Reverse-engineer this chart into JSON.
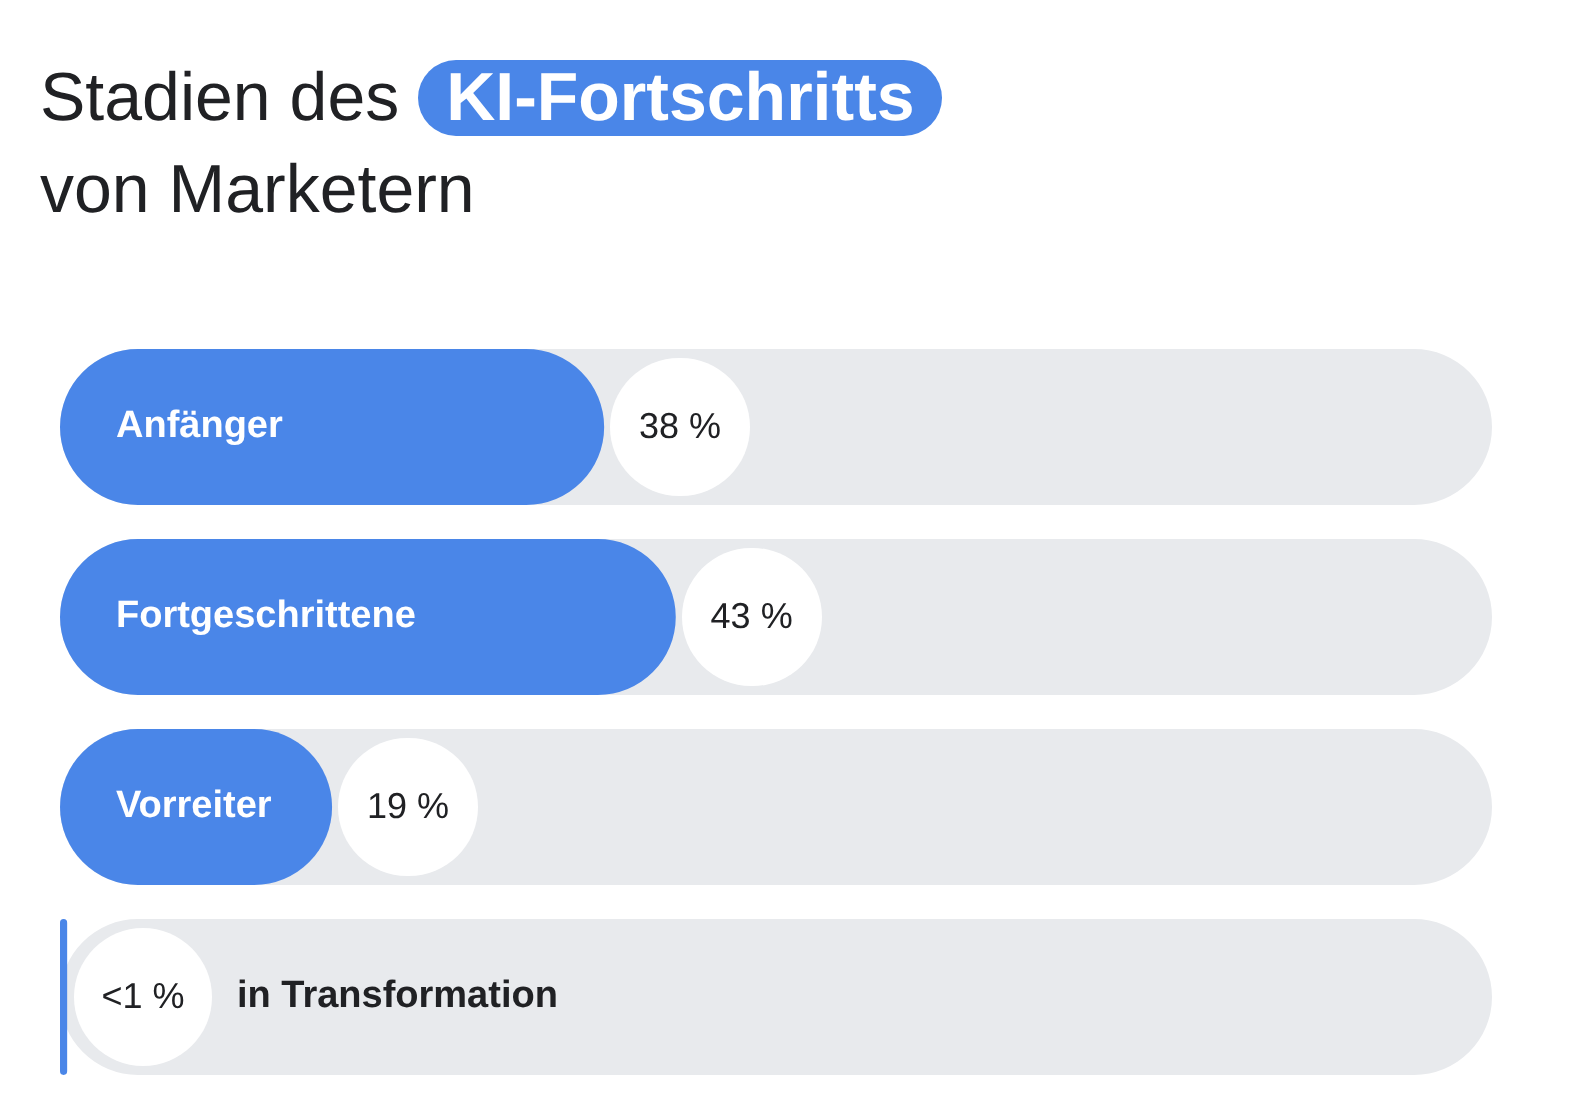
{
  "chart_data": {
    "type": "bar",
    "orientation": "horizontal",
    "title": "Stadien des KI-Fortschritts von Marketern",
    "categories": [
      "Anfänger",
      "Fortgeschrittene",
      "Vorreiter",
      "in Transformation"
    ],
    "values": [
      38,
      43,
      19,
      0.5
    ],
    "value_labels": [
      "38 %",
      "43 %",
      "19 %",
      "<1 %"
    ],
    "color": "#4a86e8",
    "xlim": [
      0,
      100
    ],
    "tick_labels": false
  }
}
